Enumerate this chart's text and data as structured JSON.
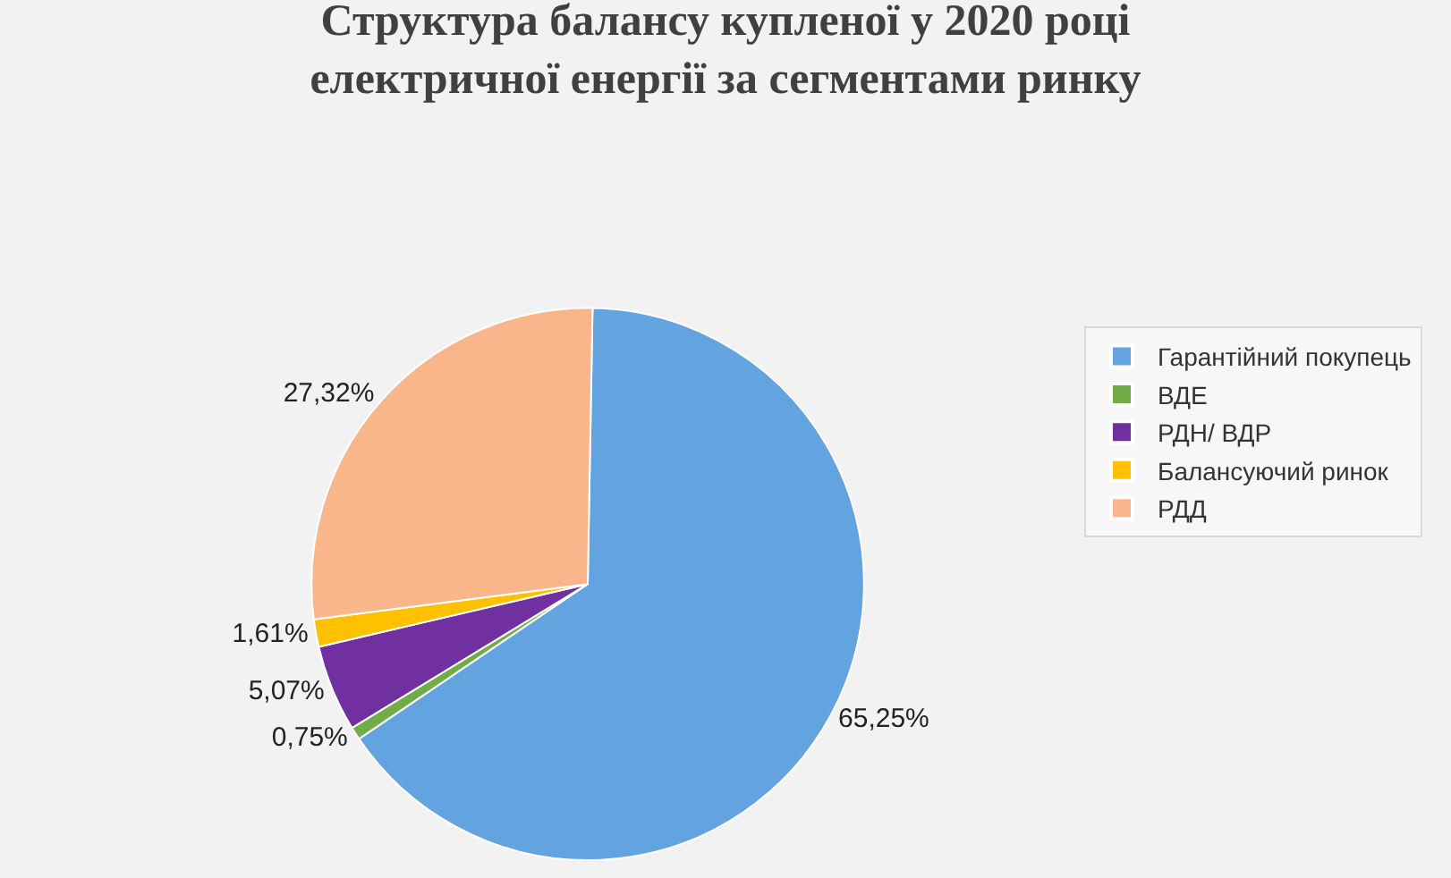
{
  "chart_data": {
    "type": "pie",
    "title": "Структура балансу купленої у 2020 році\nелектричної енергії за сегментами ринку",
    "categories": [
      "Гарантійний покупець",
      "ВДЕ",
      "РДН/ ВДР",
      "Балансуючий ринок",
      "РДД"
    ],
    "values": [
      65.25,
      0.75,
      5.07,
      1.61,
      27.32
    ],
    "colors": [
      "#62a3e0",
      "#70ad47",
      "#7030a0",
      "#ffc000",
      "#f8b68a"
    ],
    "value_labels": [
      "65,25%",
      "0,75%",
      "5,07%",
      "1,61%",
      "27,32%"
    ],
    "legend": "right"
  }
}
